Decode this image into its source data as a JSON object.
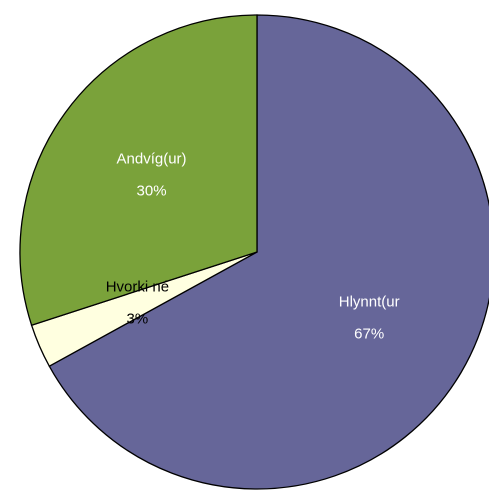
{
  "chart_data": {
    "type": "pie",
    "categories": [
      "Hlynnt(ur",
      "Hvorki né",
      "Andvíg(ur)"
    ],
    "values": [
      67,
      3,
      30
    ],
    "value_labels": [
      "67%",
      "3%",
      "30%"
    ],
    "colors": [
      "#666699",
      "#ffffe0",
      "#7aa23a"
    ]
  }
}
